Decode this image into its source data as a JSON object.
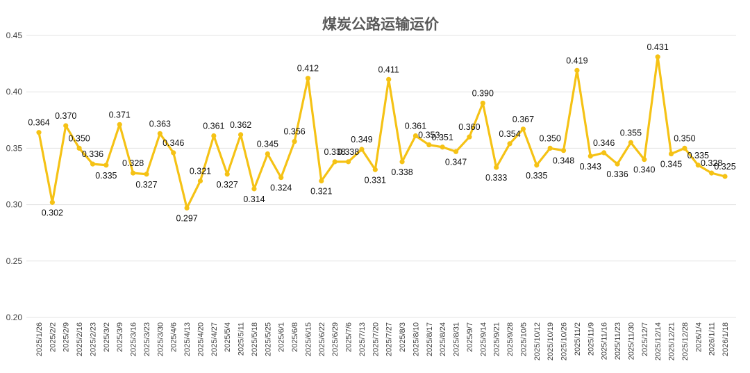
{
  "chart_data": {
    "type": "line",
    "title": "煤炭公路运输运价",
    "xlabel": "",
    "ylabel": "",
    "ylim": [
      0.2,
      0.45
    ],
    "yticks": [
      "0.20",
      "0.25",
      "0.30",
      "0.35",
      "0.40",
      "0.45"
    ],
    "grid": true,
    "legend": "none",
    "colors": {
      "series": "#F5C215",
      "grid": "#e3e3e3",
      "text": "#404040"
    },
    "x": [
      "2025/1/26",
      "2025/2/2",
      "2025/2/9",
      "2025/2/16",
      "2025/2/23",
      "2025/3/2",
      "2025/3/9",
      "2025/3/16",
      "2025/3/23",
      "2025/3/30",
      "2025/4/6",
      "2025/4/13",
      "2025/4/20",
      "2025/4/27",
      "2025/5/4",
      "2025/5/11",
      "2025/5/18",
      "2025/5/25",
      "2025/6/1",
      "2025/6/8",
      "2025/6/15",
      "2025/6/22",
      "2025/6/29",
      "2025/7/6",
      "2025/7/13",
      "2025/7/20",
      "2025/7/27",
      "2025/8/3",
      "2025/8/10",
      "2025/8/17",
      "2025/8/24",
      "2025/8/31",
      "2025/9/7",
      "2025/9/14",
      "2025/9/21",
      "2025/9/28",
      "2025/10/5",
      "2025/10/12",
      "2025/10/19",
      "2025/10/26",
      "2025/11/2",
      "2025/11/9",
      "2025/11/16",
      "2025/11/23",
      "2025/11/30",
      "2025/12/7",
      "2025/12/14",
      "2025/12/21",
      "2025/12/28",
      "2026/1/4",
      "2026/1/11",
      "2026/1/18"
    ],
    "series": [
      {
        "values": [
          0.364,
          0.302,
          0.37,
          0.35,
          0.336,
          0.335,
          0.371,
          0.328,
          0.327,
          0.363,
          0.346,
          0.297,
          0.321,
          0.361,
          0.327,
          0.362,
          0.314,
          0.345,
          0.324,
          0.356,
          0.412,
          0.321,
          0.338,
          0.338,
          0.349,
          0.331,
          0.411,
          0.338,
          0.361,
          0.353,
          0.351,
          0.347,
          0.36,
          0.39,
          0.333,
          0.354,
          0.367,
          0.335,
          0.35,
          0.348,
          0.419,
          0.343,
          0.346,
          0.336,
          0.355,
          0.34,
          0.431,
          0.345,
          0.35,
          0.335,
          0.328,
          0.325
        ],
        "labels": [
          "0.364",
          "0.302",
          "0.370",
          "0.350",
          "0.336",
          "0.335",
          "0.371",
          "0.328",
          "0.327",
          "0.363",
          "0.346",
          "0.297",
          "0.321",
          "0.361",
          "0.327",
          "0.362",
          "0.314",
          "0.345",
          "0.324",
          "0.356",
          "0.412",
          "0.321",
          "0.338",
          "0.338",
          "0.349",
          "0.331",
          "0.411",
          "0.338",
          "0.361",
          "0.353",
          "0.351",
          "0.347",
          "0.360",
          "0.390",
          "0.333",
          "0.354",
          "0.367",
          "0.335",
          "0.350",
          "0.348",
          "0.419",
          "0.343",
          "0.346",
          "0.336",
          "0.355",
          "0.340",
          "0.431",
          "0.345",
          "0.350",
          "0.335",
          "0.328",
          "0.325"
        ]
      }
    ]
  }
}
